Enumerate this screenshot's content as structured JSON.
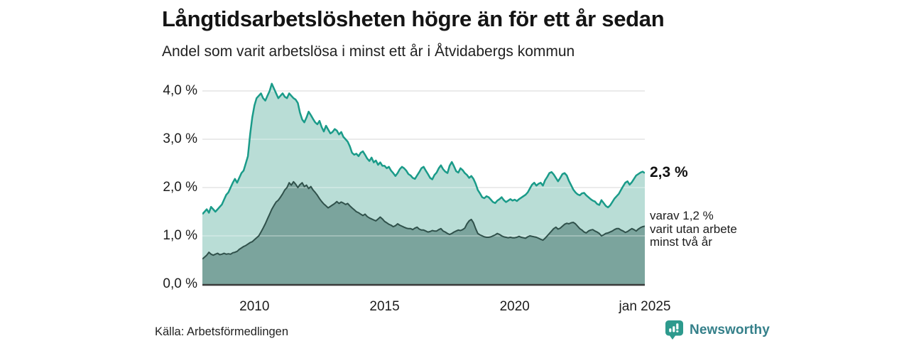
{
  "header": {
    "title": "Långtidsarbetslösheten högre än för ett år sedan",
    "subtitle": "Andel som varit arbetslösa i minst ett år i Åtvidabergs kommun"
  },
  "chart_data": {
    "type": "area",
    "title": "Långtidsarbetslösheten högre än för ett år sedan",
    "subtitle": "Andel som varit arbetslösa i minst ett år i Åtvidabergs kommun",
    "unit": "%",
    "x_start_year": 2008,
    "x_end_label": "jan 2025",
    "x_ticks": [
      {
        "label": "2010",
        "year": 2010
      },
      {
        "label": "2015",
        "year": 2015
      },
      {
        "label": "2020",
        "year": 2020
      },
      {
        "label": "jan 2025",
        "year": 2025
      }
    ],
    "y_ticks": [
      "0,0 %",
      "1,0 %",
      "2,0 %",
      "3,0 %",
      "4,0 %"
    ],
    "ylim": [
      0,
      4.3
    ],
    "grid": true,
    "legend_position": "none",
    "colors": {
      "total_line": "#1a9b89",
      "total_fill": "#b9ddd6",
      "two_year_line": "#30514b",
      "two_year_fill": "#7ba49d",
      "gridline": "#d9d9d9",
      "axis_line": "#3a3a3a"
    },
    "series": [
      {
        "name": "Andel arbetslösa minst ett år",
        "latest_value": 2.3,
        "values": [
          1.45,
          1.5,
          1.55,
          1.48,
          1.6,
          1.55,
          1.5,
          1.55,
          1.6,
          1.65,
          1.75,
          1.85,
          1.9,
          2.0,
          2.1,
          2.18,
          2.1,
          2.2,
          2.3,
          2.35,
          2.5,
          2.65,
          3.1,
          3.45,
          3.7,
          3.85,
          3.9,
          3.95,
          3.85,
          3.8,
          3.9,
          4.0,
          4.15,
          4.05,
          3.95,
          3.85,
          3.9,
          3.95,
          3.88,
          3.85,
          3.95,
          3.9,
          3.85,
          3.82,
          3.75,
          3.55,
          3.41,
          3.35,
          3.45,
          3.57,
          3.5,
          3.42,
          3.35,
          3.31,
          3.38,
          3.25,
          3.16,
          3.28,
          3.2,
          3.12,
          3.15,
          3.21,
          3.18,
          3.1,
          3.15,
          3.05,
          3.0,
          2.95,
          2.85,
          2.72,
          2.68,
          2.7,
          2.65,
          2.72,
          2.75,
          2.68,
          2.6,
          2.55,
          2.62,
          2.52,
          2.56,
          2.47,
          2.52,
          2.45,
          2.45,
          2.4,
          2.43,
          2.35,
          2.3,
          2.24,
          2.3,
          2.38,
          2.43,
          2.4,
          2.35,
          2.28,
          2.25,
          2.2,
          2.18,
          2.25,
          2.32,
          2.4,
          2.43,
          2.35,
          2.28,
          2.2,
          2.17,
          2.26,
          2.31,
          2.4,
          2.46,
          2.38,
          2.33,
          2.3,
          2.45,
          2.53,
          2.44,
          2.34,
          2.31,
          2.4,
          2.36,
          2.3,
          2.26,
          2.2,
          2.24,
          2.18,
          2.08,
          1.95,
          1.88,
          1.8,
          1.78,
          1.82,
          1.8,
          1.75,
          1.7,
          1.68,
          1.73,
          1.76,
          1.8,
          1.74,
          1.7,
          1.73,
          1.76,
          1.73,
          1.75,
          1.72,
          1.76,
          1.79,
          1.82,
          1.85,
          1.9,
          1.98,
          2.06,
          2.1,
          2.04,
          2.08,
          2.1,
          2.04,
          2.15,
          2.22,
          2.3,
          2.32,
          2.27,
          2.2,
          2.13,
          2.2,
          2.28,
          2.3,
          2.25,
          2.14,
          2.05,
          1.96,
          1.9,
          1.86,
          1.84,
          1.88,
          1.89,
          1.84,
          1.8,
          1.76,
          1.73,
          1.71,
          1.66,
          1.64,
          1.74,
          1.68,
          1.62,
          1.59,
          1.63,
          1.7,
          1.77,
          1.82,
          1.87,
          1.95,
          2.03,
          2.1,
          2.13,
          2.06,
          2.11,
          2.18,
          2.25,
          2.28,
          2.31,
          2.33,
          2.3
        ]
      },
      {
        "name": "Andel arbetslösa minst två år",
        "latest_value": 1.2,
        "values": [
          0.52,
          0.56,
          0.6,
          0.66,
          0.62,
          0.6,
          0.62,
          0.64,
          0.61,
          0.62,
          0.64,
          0.62,
          0.63,
          0.62,
          0.65,
          0.66,
          0.68,
          0.72,
          0.75,
          0.78,
          0.8,
          0.83,
          0.86,
          0.88,
          0.92,
          0.96,
          1.0,
          1.08,
          1.16,
          1.25,
          1.35,
          1.45,
          1.55,
          1.63,
          1.7,
          1.74,
          1.8,
          1.87,
          1.95,
          2.0,
          2.1,
          2.05,
          2.12,
          2.07,
          2.0,
          2.06,
          2.1,
          2.02,
          2.05,
          1.98,
          2.02,
          1.95,
          1.9,
          1.84,
          1.77,
          1.71,
          1.66,
          1.62,
          1.58,
          1.61,
          1.64,
          1.67,
          1.71,
          1.67,
          1.7,
          1.68,
          1.65,
          1.67,
          1.62,
          1.58,
          1.54,
          1.5,
          1.48,
          1.45,
          1.42,
          1.45,
          1.4,
          1.37,
          1.35,
          1.33,
          1.31,
          1.35,
          1.39,
          1.35,
          1.3,
          1.27,
          1.24,
          1.22,
          1.19,
          1.21,
          1.25,
          1.22,
          1.2,
          1.18,
          1.16,
          1.15,
          1.15,
          1.13,
          1.16,
          1.18,
          1.14,
          1.12,
          1.12,
          1.1,
          1.08,
          1.09,
          1.11,
          1.1,
          1.1,
          1.13,
          1.15,
          1.1,
          1.08,
          1.05,
          1.03,
          1.05,
          1.08,
          1.1,
          1.12,
          1.11,
          1.13,
          1.16,
          1.25,
          1.31,
          1.34,
          1.27,
          1.15,
          1.05,
          1.02,
          1.0,
          0.98,
          0.97,
          0.97,
          0.98,
          1.0,
          1.02,
          1.05,
          1.03,
          1.0,
          0.98,
          0.97,
          0.96,
          0.97,
          0.96,
          0.96,
          0.97,
          0.99,
          0.97,
          0.96,
          0.95,
          0.98,
          1.0,
          0.99,
          0.98,
          0.97,
          0.95,
          0.93,
          0.91,
          0.95,
          1.0,
          1.05,
          1.1,
          1.15,
          1.18,
          1.14,
          1.16,
          1.2,
          1.24,
          1.26,
          1.25,
          1.27,
          1.28,
          1.25,
          1.2,
          1.15,
          1.12,
          1.08,
          1.06,
          1.1,
          1.12,
          1.13,
          1.1,
          1.08,
          1.05,
          1.0,
          1.02,
          1.05,
          1.06,
          1.08,
          1.1,
          1.13,
          1.15,
          1.15,
          1.12,
          1.1,
          1.07,
          1.09,
          1.12,
          1.15,
          1.13,
          1.1,
          1.14,
          1.17,
          1.19,
          1.2
        ]
      }
    ],
    "annotations": {
      "latest_total": "2,3 %",
      "two_year_lines": [
        "varav 1,2 %",
        "varit utan arbete",
        "minst två år"
      ]
    }
  },
  "footer": {
    "source": "Källa: Arbetsförmedlingen",
    "brand": "Newsworthy"
  }
}
